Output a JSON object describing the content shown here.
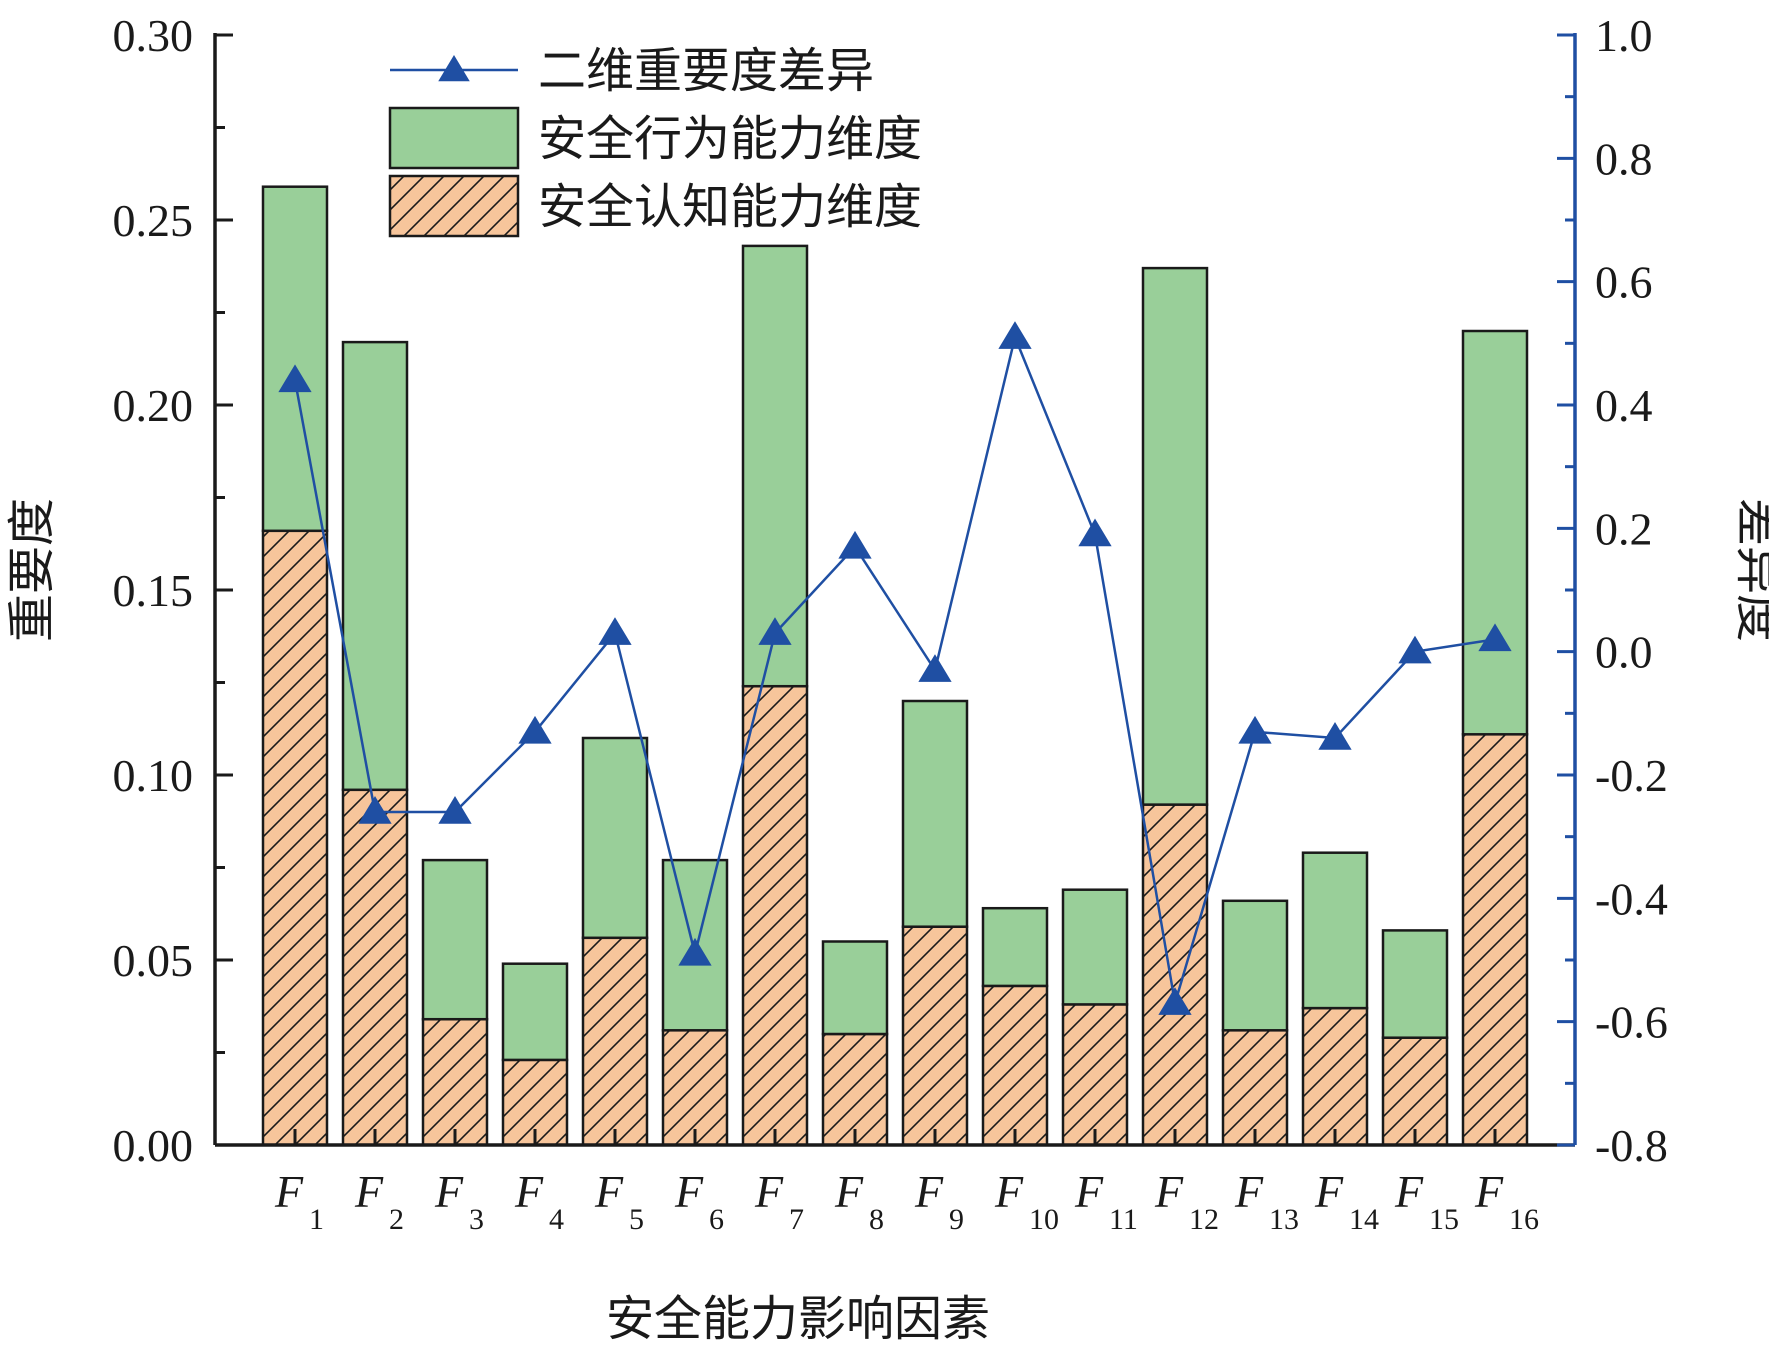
{
  "chart_data": {
    "type": "bar",
    "stacked": true,
    "categories": [
      {
        "main": "F",
        "sub": "1"
      },
      {
        "main": "F",
        "sub": "2"
      },
      {
        "main": "F",
        "sub": "3"
      },
      {
        "main": "F",
        "sub": "4"
      },
      {
        "main": "F",
        "sub": "5"
      },
      {
        "main": "F",
        "sub": "6"
      },
      {
        "main": "F",
        "sub": "7"
      },
      {
        "main": "F",
        "sub": "8"
      },
      {
        "main": "F",
        "sub": "9"
      },
      {
        "main": "F",
        "sub": "10"
      },
      {
        "main": "F",
        "sub": "11"
      },
      {
        "main": "F",
        "sub": "12"
      },
      {
        "main": "F",
        "sub": "13"
      },
      {
        "main": "F",
        "sub": "14"
      },
      {
        "main": "F",
        "sub": "15"
      },
      {
        "main": "F",
        "sub": "16"
      }
    ],
    "xlabel": "安全能力影响因素",
    "ylabel_left": "重要度",
    "ylabel_right": "差异度",
    "ylim_left": [
      0,
      0.3
    ],
    "ylim_right": [
      -0.8,
      1.0
    ],
    "yticks_left": [
      "0.00",
      "0.05",
      "0.10",
      "0.15",
      "0.20",
      "0.25",
      "0.30"
    ],
    "yticks_right": [
      "-0.8",
      "-0.6",
      "-0.4",
      "-0.2",
      "0.0",
      "0.2",
      "0.4",
      "0.6",
      "0.8",
      "1.0"
    ],
    "series": [
      {
        "name": "安全认知能力维度",
        "kind": "bar",
        "pattern": "hatched",
        "color": "#f7c59b",
        "values": [
          0.166,
          0.096,
          0.034,
          0.023,
          0.056,
          0.031,
          0.124,
          0.03,
          0.059,
          0.043,
          0.038,
          0.092,
          0.031,
          0.037,
          0.029,
          0.111
        ]
      },
      {
        "name": "安全行为能力维度",
        "kind": "bar",
        "color": "#99cf99",
        "values": [
          0.093,
          0.121,
          0.043,
          0.026,
          0.054,
          0.046,
          0.119,
          0.025,
          0.061,
          0.021,
          0.031,
          0.145,
          0.035,
          0.042,
          0.029,
          0.109
        ]
      },
      {
        "name": "二维重要度差异",
        "kind": "line",
        "marker": "triangle",
        "axis": "right",
        "color": "#1f4fa3",
        "values": [
          0.44,
          -0.26,
          -0.26,
          -0.13,
          0.03,
          -0.49,
          0.03,
          0.17,
          -0.03,
          0.51,
          0.19,
          -0.57,
          -0.13,
          -0.14,
          0.0,
          0.02
        ]
      }
    ],
    "legend_order": [
      "二维重要度差异",
      "安全行为能力维度",
      "安全认知能力维度"
    ],
    "legend_position": "top-center",
    "grid": false
  }
}
